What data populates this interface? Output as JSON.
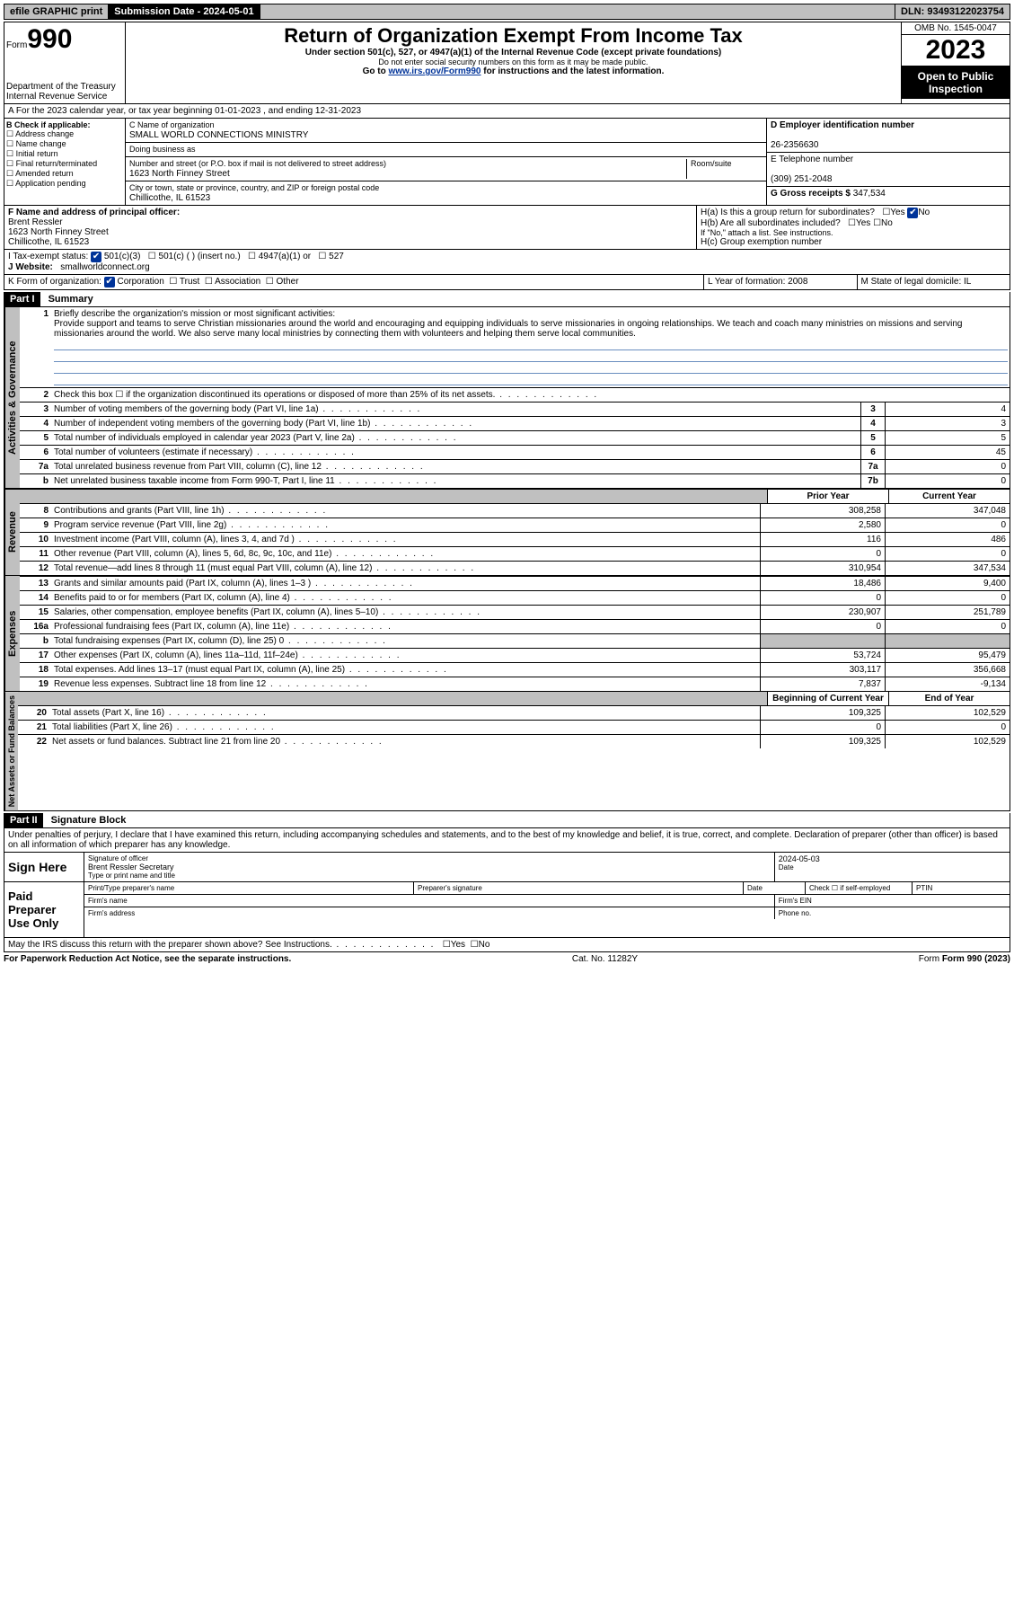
{
  "topbar": {
    "efile": "efile GRAPHIC print",
    "submission_label": "Submission Date - 2024-05-01",
    "dln": "DLN: 93493122023754"
  },
  "header": {
    "form_label": "Form",
    "form_no": "990",
    "dept": "Department of the Treasury",
    "irs": "Internal Revenue Service",
    "title": "Return of Organization Exempt From Income Tax",
    "subtitle": "Under section 501(c), 527, or 4947(a)(1) of the Internal Revenue Code (except private foundations)",
    "ssn_note": "Do not enter social security numbers on this form as it may be made public.",
    "goto_pre": "Go to ",
    "goto_link": "www.irs.gov/Form990",
    "goto_post": " for instructions and the latest information.",
    "omb": "OMB No. 1545-0047",
    "year": "2023",
    "opi": "Open to Public Inspection"
  },
  "row_a": "A   For the 2023 calendar year, or tax year beginning 01-01-2023    , and ending 12-31-2023",
  "col_b": {
    "label": "B Check if applicable:",
    "opts": [
      "Address change",
      "Name change",
      "Initial return",
      "Final return/terminated",
      "Amended return",
      "Application pending"
    ]
  },
  "col_c": {
    "name_label": "C Name of organization",
    "name": "SMALL WORLD CONNECTIONS MINISTRY",
    "dba_label": "Doing business as",
    "addr_label": "Number and street (or P.O. box if mail is not delivered to street address)",
    "room_label": "Room/suite",
    "addr": "1623 North Finney Street",
    "city_label": "City or town, state or province, country, and ZIP or foreign postal code",
    "city": "Chillicothe, IL  61523"
  },
  "col_d": {
    "ein_label": "D Employer identification number",
    "ein": "26-2356630",
    "tel_label": "E Telephone number",
    "tel": "(309) 251-2048",
    "gross_label": "G Gross receipts $",
    "gross": "347,534"
  },
  "row_f": {
    "label": "F  Name and address of principal officer:",
    "name": "Brent Ressler",
    "addr1": "1623 North Finney Street",
    "addr2": "Chillicothe, IL  61523"
  },
  "row_h": {
    "ha": "H(a)  Is this a group return for subordinates?",
    "hb": "H(b)  Are all subordinates included?",
    "hnote": "If \"No,\" attach a list. See instructions.",
    "hc": "H(c)  Group exemption number",
    "yes": "Yes",
    "no": "No"
  },
  "row_i": {
    "label": "I    Tax-exempt status:",
    "o1": "501(c)(3)",
    "o2": "501(c) (  ) (insert no.)",
    "o3": "4947(a)(1) or",
    "o4": "527"
  },
  "row_j": {
    "label": "J    Website:",
    "val": "smallworldconnect.org"
  },
  "row_k": {
    "label": "K Form of organization:",
    "o1": "Corporation",
    "o2": "Trust",
    "o3": "Association",
    "o4": "Other"
  },
  "row_l": {
    "label": "L Year of formation: 2008"
  },
  "row_m": {
    "label": "M State of legal domicile: IL"
  },
  "part1": {
    "hdr": "Part I",
    "title": "Summary"
  },
  "mission_label": "Briefly describe the organization's mission or most significant activities:",
  "mission": "Provide support and teams to serve Christian missionaries around the world and encouraging and equipping individuals to serve missionaries in ongoing relationships. We teach and coach many ministries on missions and serving missionaries around the world. We also serve many local ministries by connecting them with volunteers and helping them serve local communities.",
  "lines_gov": [
    {
      "n": "2",
      "d": "Check this box ☐  if the organization discontinued its operations or disposed of more than 25% of its net assets."
    },
    {
      "n": "3",
      "d": "Number of voting members of the governing body (Part VI, line 1a)",
      "box": "3",
      "v": "4"
    },
    {
      "n": "4",
      "d": "Number of independent voting members of the governing body (Part VI, line 1b)",
      "box": "4",
      "v": "3"
    },
    {
      "n": "5",
      "d": "Total number of individuals employed in calendar year 2023 (Part V, line 2a)",
      "box": "5",
      "v": "5"
    },
    {
      "n": "6",
      "d": "Total number of volunteers (estimate if necessary)",
      "box": "6",
      "v": "45"
    },
    {
      "n": "7a",
      "d": "Total unrelated business revenue from Part VIII, column (C), line 12",
      "box": "7a",
      "v": "0"
    },
    {
      "n": "b",
      "d": "Net unrelated business taxable income from Form 990-T, Part I, line 11",
      "box": "7b",
      "v": "0"
    }
  ],
  "hdr_rev": {
    "c1": "Prior Year",
    "c2": "Current Year"
  },
  "lines_rev": [
    {
      "n": "8",
      "d": "Contributions and grants (Part VIII, line 1h)",
      "c1": "308,258",
      "c2": "347,048"
    },
    {
      "n": "9",
      "d": "Program service revenue (Part VIII, line 2g)",
      "c1": "2,580",
      "c2": "0"
    },
    {
      "n": "10",
      "d": "Investment income (Part VIII, column (A), lines 3, 4, and 7d )",
      "c1": "116",
      "c2": "486"
    },
    {
      "n": "11",
      "d": "Other revenue (Part VIII, column (A), lines 5, 6d, 8c, 9c, 10c, and 11e)",
      "c1": "0",
      "c2": "0"
    },
    {
      "n": "12",
      "d": "Total revenue—add lines 8 through 11 (must equal Part VIII, column (A), line 12)",
      "c1": "310,954",
      "c2": "347,534"
    }
  ],
  "lines_exp": [
    {
      "n": "13",
      "d": "Grants and similar amounts paid (Part IX, column (A), lines 1–3 )",
      "c1": "18,486",
      "c2": "9,400"
    },
    {
      "n": "14",
      "d": "Benefits paid to or for members (Part IX, column (A), line 4)",
      "c1": "0",
      "c2": "0"
    },
    {
      "n": "15",
      "d": "Salaries, other compensation, employee benefits (Part IX, column (A), lines 5–10)",
      "c1": "230,907",
      "c2": "251,789"
    },
    {
      "n": "16a",
      "d": "Professional fundraising fees (Part IX, column (A), line 11e)",
      "c1": "0",
      "c2": "0"
    },
    {
      "n": "b",
      "d": "Total fundraising expenses (Part IX, column (D), line 25) 0",
      "shaded": true
    },
    {
      "n": "17",
      "d": "Other expenses (Part IX, column (A), lines 11a–11d, 11f–24e)",
      "c1": "53,724",
      "c2": "95,479"
    },
    {
      "n": "18",
      "d": "Total expenses. Add lines 13–17 (must equal Part IX, column (A), line 25)",
      "c1": "303,117",
      "c2": "356,668"
    },
    {
      "n": "19",
      "d": "Revenue less expenses. Subtract line 18 from line 12",
      "c1": "7,837",
      "c2": "-9,134"
    }
  ],
  "hdr_bal": {
    "c1": "Beginning of Current Year",
    "c2": "End of Year"
  },
  "lines_bal": [
    {
      "n": "20",
      "d": "Total assets (Part X, line 16)",
      "c1": "109,325",
      "c2": "102,529"
    },
    {
      "n": "21",
      "d": "Total liabilities (Part X, line 26)",
      "c1": "0",
      "c2": "0"
    },
    {
      "n": "22",
      "d": "Net assets or fund balances. Subtract line 21 from line 20",
      "c1": "109,325",
      "c2": "102,529"
    }
  ],
  "vtabs": {
    "gov": "Activities & Governance",
    "rev": "Revenue",
    "exp": "Expenses",
    "bal": "Net Assets or Fund Balances"
  },
  "part2": {
    "hdr": "Part II",
    "title": "Signature Block"
  },
  "perjury": "Under penalties of perjury, I declare that I have examined this return, including accompanying schedules and statements, and to the best of my knowledge and belief, it is true, correct, and complete. Declaration of preparer (other than officer) is based on all information of which preparer has any knowledge.",
  "sign": {
    "here": "Sign Here",
    "sig_label": "Signature of officer",
    "name": "Brent Ressler  Secretary",
    "name_label": "Type or print name and title",
    "date_label": "Date",
    "date": "2024-05-03"
  },
  "prep": {
    "label": "Paid Preparer Use Only",
    "pt": "Print/Type preparer's name",
    "ps": "Preparer's signature",
    "dt": "Date",
    "chk": "Check ☐ if self-employed",
    "ptin": "PTIN",
    "fn": "Firm's name",
    "fe": "Firm's EIN",
    "fa": "Firm's address",
    "ph": "Phone no."
  },
  "discuss": "May the IRS discuss this return with the preparer shown above? See Instructions.",
  "footer": {
    "pra": "For Paperwork Reduction Act Notice, see the separate instructions.",
    "cat": "Cat. No. 11282Y",
    "form": "Form 990 (2023)"
  }
}
